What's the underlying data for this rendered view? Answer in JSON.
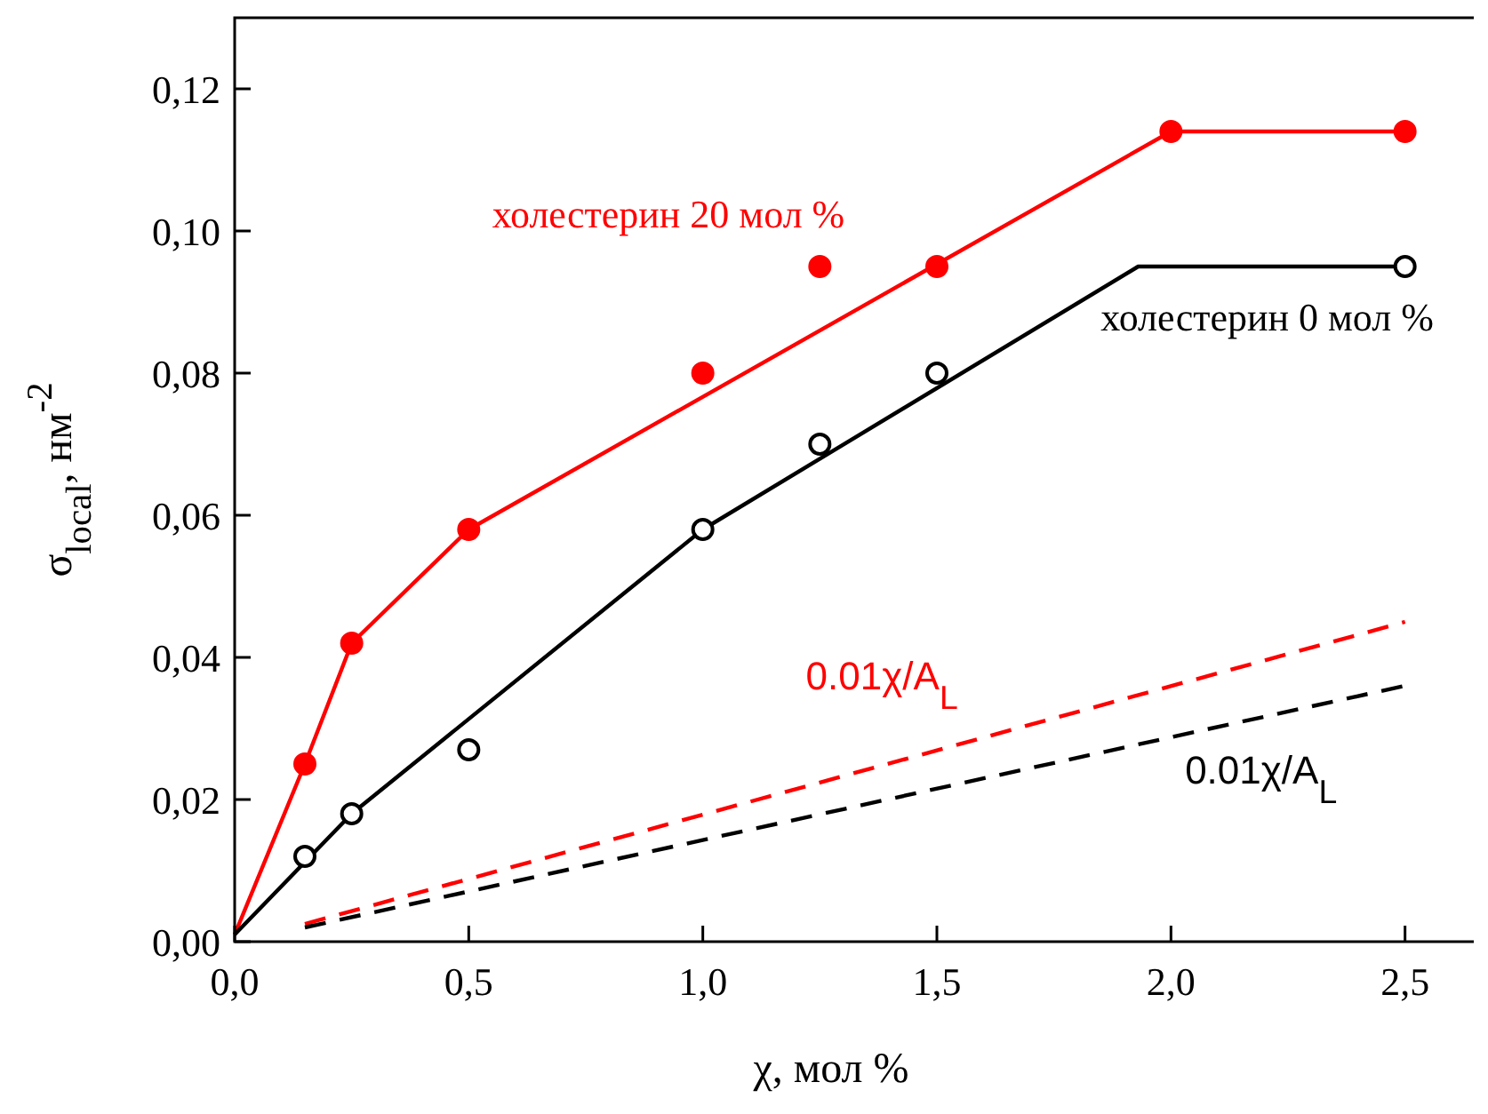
{
  "chart_data": {
    "type": "line",
    "xlabel": "χ, мол %",
    "ylabel": "σ$_{local}$, нм$^{-2}$",
    "xlim": [
      0,
      2.7
    ],
    "ylim": [
      0,
      0.13
    ],
    "xticks": [
      {
        "value": 0,
        "label": "0,0"
      },
      {
        "value": 0.5,
        "label": "0,5"
      },
      {
        "value": 1,
        "label": "1,0"
      },
      {
        "value": 1.5,
        "label": "1,5"
      },
      {
        "value": 2,
        "label": "2,0"
      },
      {
        "value": 2.5,
        "label": "2,5"
      }
    ],
    "yticks": [
      {
        "value": 0,
        "label": "0,00"
      },
      {
        "value": 0.02,
        "label": "0,02"
      },
      {
        "value": 0.04,
        "label": "0,04"
      },
      {
        "value": 0.06,
        "label": "0,06"
      },
      {
        "value": 0.08,
        "label": "0,08"
      },
      {
        "value": 0.1,
        "label": "0,10"
      },
      {
        "value": 0.12,
        "label": "0,12"
      }
    ],
    "grid": false,
    "legend": false,
    "series": [
      {
        "name": "холестерин 20 мол %",
        "color": "#ff0000",
        "line_style": "solid",
        "marker": "none",
        "x": [
          0,
          0.15,
          0.25,
          0.5,
          2.0,
          2.5
        ],
        "values": [
          0.001,
          0.025,
          0.042,
          0.058,
          0.114,
          0.114
        ]
      },
      {
        "type": "scatter",
        "color": "#ff0000",
        "marker": "circle",
        "x": [
          0.15,
          0.25,
          0.5,
          1.0,
          1.25,
          1.5,
          2.0,
          2.5
        ],
        "values": [
          0.025,
          0.042,
          0.058,
          0.08,
          0.095,
          0.095,
          0.114,
          0.114
        ]
      },
      {
        "name": "холестерин 0 мол %",
        "color": "#000000",
        "line_style": "solid",
        "marker": "none",
        "x": [
          0,
          0.25,
          1.0,
          1.93,
          2.5
        ],
        "values": [
          0.001,
          0.018,
          0.058,
          0.095,
          0.095
        ]
      },
      {
        "type": "scatter",
        "color": "#000000",
        "marker": "circle",
        "x": [
          0.15,
          0.25,
          0.5,
          1.0,
          1.25,
          1.5,
          2.5
        ],
        "values": [
          0.012,
          0.018,
          0.027,
          0.058,
          0.07,
          0.08,
          0.095
        ]
      },
      {
        "name": "0.01χ/$_{}$A$_{L}$",
        "color": "#ff0000",
        "line_style": "dashed",
        "marker": "none",
        "x": [
          0.15,
          2.5
        ],
        "values": [
          0.0025,
          0.045
        ]
      },
      {
        "name": "0.01χ/$_{}$A$_{L}$",
        "color": "#000000",
        "line_style": "dashed",
        "marker": "none",
        "x": [
          0.15,
          2.5
        ],
        "values": [
          0.002,
          0.036
        ]
      }
    ]
  }
}
